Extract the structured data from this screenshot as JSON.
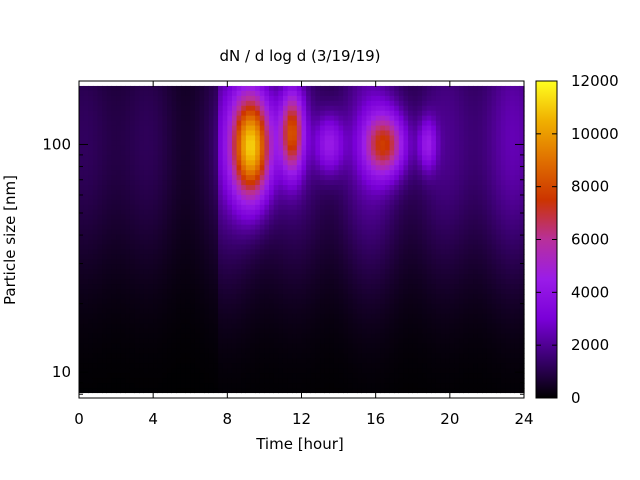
{
  "chart_data": {
    "type": "heatmap",
    "title": "dN / d log d (3/19/19)",
    "xlabel": "Time [hour]",
    "ylabel": "Particle size [nm]",
    "x_range": [
      0,
      24
    ],
    "x_ticks": [
      0,
      4,
      8,
      12,
      16,
      20,
      24
    ],
    "y_scale": "log",
    "y_range": [
      7.7,
      190
    ],
    "y_ticks": [
      10,
      100
    ],
    "colorbar": {
      "range": [
        0,
        12000
      ],
      "ticks": [
        0,
        2000,
        4000,
        6000,
        8000,
        10000,
        12000
      ],
      "palette": [
        "#000000",
        "#3a0070",
        "#7a00d8",
        "#9a1ce8",
        "#b8309a",
        "#cc3400",
        "#e07000",
        "#f0b000",
        "#ffff20"
      ]
    },
    "grid": false,
    "legend": "colorbar right",
    "features": [
      {
        "label": "peak",
        "time_hour": 9.3,
        "size_nm": 98,
        "value": 11000
      },
      {
        "label": "peak",
        "time_hour": 11.5,
        "size_nm": 112,
        "value": 8000
      },
      {
        "label": "peak",
        "time_hour": 16.5,
        "size_nm": 100,
        "value": 7200
      },
      {
        "label": "peak",
        "time_hour": 13.5,
        "size_nm": 100,
        "value": 4800
      },
      {
        "label": "peak",
        "time_hour": 18.8,
        "size_nm": 100,
        "value": 4500
      },
      {
        "label": "background",
        "time_hour": 12,
        "size_nm": 100,
        "value": 2800
      }
    ]
  }
}
